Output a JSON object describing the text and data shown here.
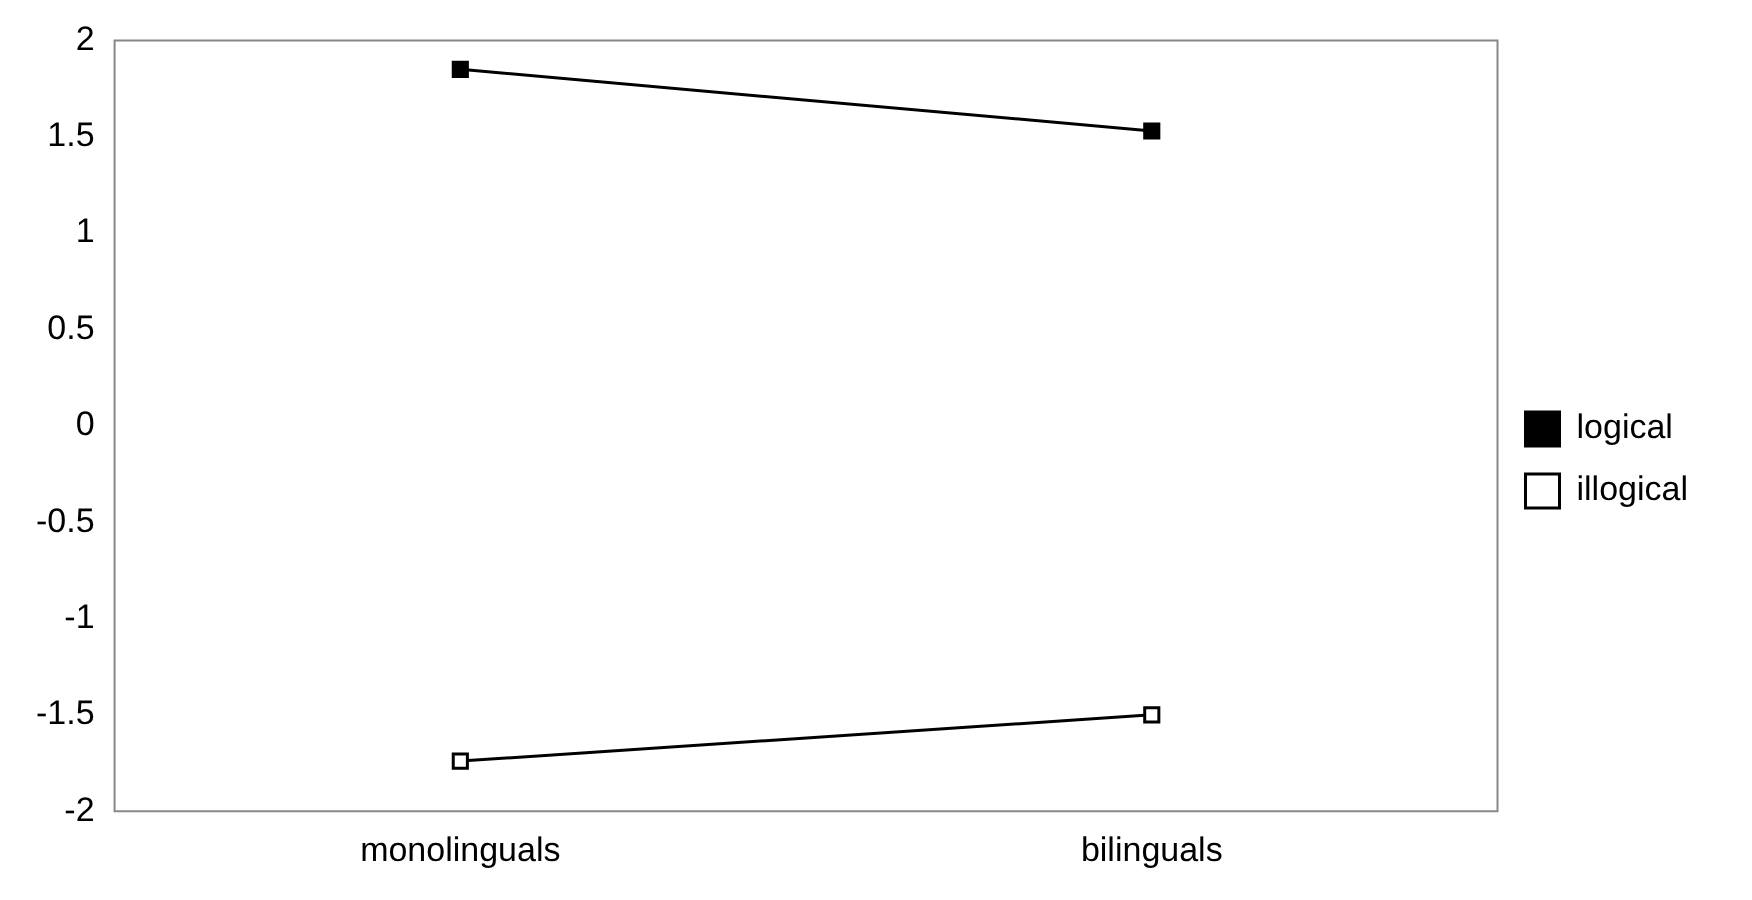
{
  "chart_data": {
    "type": "line",
    "categories": [
      "monolinguals",
      "bilinguals"
    ],
    "series": [
      {
        "name": "logical",
        "color": "#000000",
        "values": [
          1.85,
          1.53
        ]
      },
      {
        "name": "illogical",
        "color": "#000000",
        "values": [
          -1.74,
          -1.5
        ]
      }
    ],
    "ylim": [
      -2,
      2
    ],
    "yticks": [
      -2,
      -1.5,
      -1,
      -0.5,
      0,
      0.5,
      1,
      1.5,
      2
    ],
    "grid": false,
    "legend": "right",
    "marker": "square",
    "line_style": "solid"
  }
}
